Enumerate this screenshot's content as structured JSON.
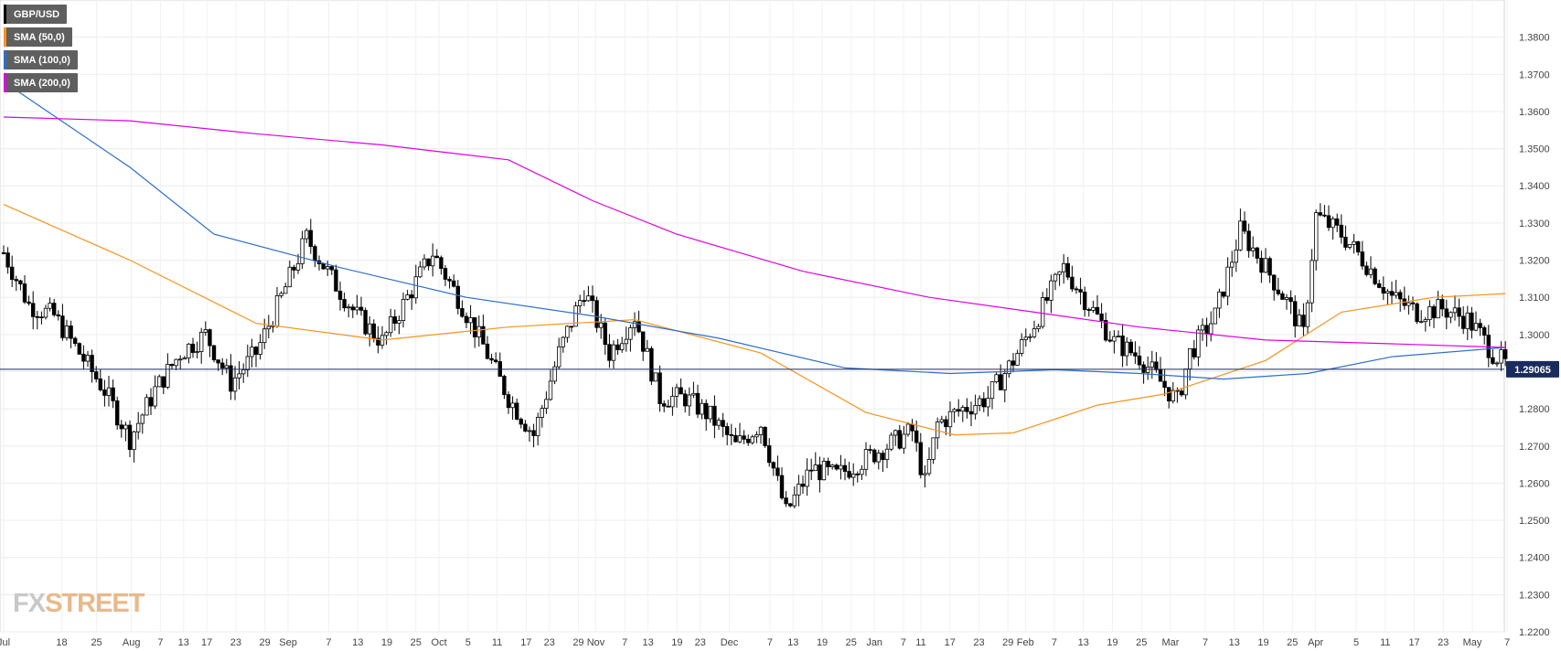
{
  "legend": [
    {
      "label": "GBP/USD",
      "color": "#000000"
    },
    {
      "label": "SMA (50,0)",
      "color": "#f7931e"
    },
    {
      "label": "SMA (100,0)",
      "color": "#2d6ec9"
    },
    {
      "label": "SMA (200,0)",
      "color": "#e000e0"
    }
  ],
  "logo": {
    "fx": "FX",
    "street": "STREET"
  },
  "chart_data": {
    "type": "candlestick",
    "symbol": "GBP/USD",
    "ylim": [
      1.22,
      1.39
    ],
    "yticks": [
      1.22,
      1.23,
      1.24,
      1.25,
      1.26,
      1.27,
      1.28,
      1.29,
      1.3,
      1.31,
      1.32,
      1.33,
      1.34,
      1.35,
      1.36,
      1.37,
      1.38
    ],
    "current_price": 1.29065,
    "current_price_label": "1.29065",
    "xticks": [
      "Jul",
      "18",
      "25",
      "Aug",
      "7",
      "13",
      "17",
      "23",
      "29",
      "Sep",
      "7",
      "13",
      "19",
      "25",
      "Oct",
      "5",
      "11",
      "17",
      "23",
      "29",
      "Nov",
      "7",
      "13",
      "19",
      "23",
      "Dec",
      "7",
      "13",
      "19",
      "25",
      "Jan",
      "7",
      "11",
      "17",
      "23",
      "29",
      "Feb",
      "7",
      "13",
      "19",
      "25",
      "Mar",
      "7",
      "13",
      "19",
      "25",
      "Apr",
      "5",
      "11",
      "17",
      "23",
      "May",
      "7"
    ],
    "close_anchors": [
      [
        0,
        1.322
      ],
      [
        6,
        1.308
      ],
      [
        12,
        1.305
      ],
      [
        18,
        1.295
      ],
      [
        24,
        1.285
      ],
      [
        30,
        1.272
      ],
      [
        36,
        1.285
      ],
      [
        42,
        1.295
      ],
      [
        48,
        1.3
      ],
      [
        54,
        1.287
      ],
      [
        60,
        1.295
      ],
      [
        66,
        1.31
      ],
      [
        72,
        1.326
      ],
      [
        78,
        1.315
      ],
      [
        84,
        1.305
      ],
      [
        90,
        1.298
      ],
      [
        96,
        1.31
      ],
      [
        102,
        1.322
      ],
      [
        108,
        1.31
      ],
      [
        114,
        1.297
      ],
      [
        120,
        1.283
      ],
      [
        126,
        1.273
      ],
      [
        132,
        1.295
      ],
      [
        138,
        1.312
      ],
      [
        144,
        1.295
      ],
      [
        150,
        1.305
      ],
      [
        156,
        1.283
      ],
      [
        162,
        1.283
      ],
      [
        168,
        1.278
      ],
      [
        174,
        1.27
      ],
      [
        180,
        1.276
      ],
      [
        186,
        1.252
      ],
      [
        192,
        1.264
      ],
      [
        198,
        1.262
      ],
      [
        204,
        1.266
      ],
      [
        210,
        1.27
      ],
      [
        216,
        1.274
      ],
      [
        219,
        1.26
      ],
      [
        222,
        1.276
      ],
      [
        228,
        1.28
      ],
      [
        234,
        1.283
      ],
      [
        240,
        1.293
      ],
      [
        246,
        1.305
      ],
      [
        252,
        1.318
      ],
      [
        258,
        1.308
      ],
      [
        264,
        1.298
      ],
      [
        270,
        1.294
      ],
      [
        276,
        1.286
      ],
      [
        279,
        1.282
      ],
      [
        282,
        1.295
      ],
      [
        288,
        1.305
      ],
      [
        294,
        1.328
      ],
      [
        300,
        1.318
      ],
      [
        306,
        1.307
      ],
      [
        309,
        1.3
      ],
      [
        312,
        1.332
      ],
      [
        318,
        1.327
      ],
      [
        324,
        1.319
      ],
      [
        330,
        1.31
      ],
      [
        336,
        1.306
      ],
      [
        342,
        1.307
      ],
      [
        348,
        1.304
      ],
      [
        351,
        1.3
      ],
      [
        354,
        1.295
      ],
      [
        357,
        1.292
      ]
    ],
    "series": [
      {
        "name": "SMA (50,0)",
        "color": "#f7931e",
        "points": [
          [
            0,
            1.335
          ],
          [
            30,
            1.32
          ],
          [
            60,
            1.303
          ],
          [
            90,
            1.2985
          ],
          [
            120,
            1.302
          ],
          [
            150,
            1.304
          ],
          [
            180,
            1.295
          ],
          [
            205,
            1.279
          ],
          [
            226,
            1.273
          ],
          [
            240,
            1.2735
          ],
          [
            260,
            1.281
          ],
          [
            276,
            1.284
          ],
          [
            300,
            1.293
          ],
          [
            318,
            1.306
          ],
          [
            340,
            1.31
          ],
          [
            357,
            1.311
          ]
        ]
      },
      {
        "name": "SMA (100,0)",
        "color": "#2d6ec9",
        "points": [
          [
            0,
            1.368
          ],
          [
            30,
            1.345
          ],
          [
            50,
            1.327
          ],
          [
            80,
            1.318
          ],
          [
            110,
            1.31
          ],
          [
            140,
            1.305
          ],
          [
            170,
            1.299
          ],
          [
            200,
            1.291
          ],
          [
            225,
            1.2895
          ],
          [
            250,
            1.2905
          ],
          [
            270,
            1.2895
          ],
          [
            290,
            1.288
          ],
          [
            310,
            1.2895
          ],
          [
            330,
            1.294
          ],
          [
            357,
            1.2965
          ]
        ]
      },
      {
        "name": "SMA (200,0)",
        "color": "#e000e0",
        "points": [
          [
            0,
            1.3585
          ],
          [
            30,
            1.3575
          ],
          [
            60,
            1.354
          ],
          [
            90,
            1.351
          ],
          [
            120,
            1.347
          ],
          [
            140,
            1.336
          ],
          [
            160,
            1.327
          ],
          [
            190,
            1.317
          ],
          [
            220,
            1.31
          ],
          [
            245,
            1.306
          ],
          [
            270,
            1.302
          ],
          [
            300,
            1.2985
          ],
          [
            330,
            1.2975
          ],
          [
            357,
            1.2965
          ]
        ]
      }
    ]
  }
}
